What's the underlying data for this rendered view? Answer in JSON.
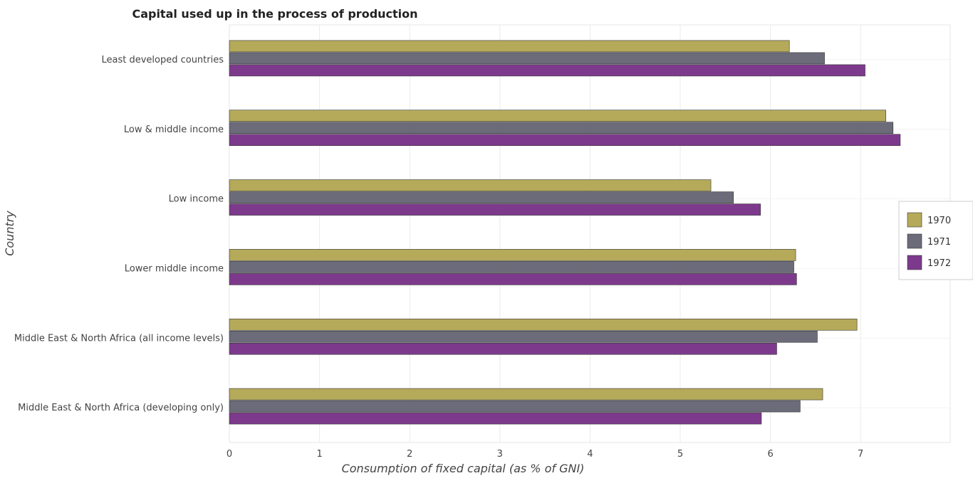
{
  "chart_data": {
    "type": "bar",
    "orientation": "horizontal",
    "title": "Capital used up in the process of production",
    "xlabel": "Consumption of fixed capital (as % of GNI)",
    "ylabel": "Country",
    "xlim": [
      0,
      7.8
    ],
    "xticks": [
      0,
      1,
      2,
      3,
      4,
      5,
      6,
      7
    ],
    "grid": true,
    "legend_position": "right",
    "categories": [
      "Least developed countries",
      "Low & middle income",
      "Low income",
      "Lower middle income",
      "Middle East & North Africa (all income levels)",
      "Middle East & North Africa (developing only)"
    ],
    "series": [
      {
        "name": "1970",
        "color": "#b5aa5a",
        "values": [
          6.21,
          7.28,
          5.34,
          6.28,
          6.96,
          6.58
        ]
      },
      {
        "name": "1971",
        "color": "#6b6b7a",
        "values": [
          6.6,
          7.36,
          5.59,
          6.26,
          6.52,
          6.33
        ]
      },
      {
        "name": "1972",
        "color": "#7d3a8c",
        "values": [
          7.05,
          7.44,
          5.89,
          6.29,
          6.07,
          5.9
        ]
      }
    ]
  }
}
